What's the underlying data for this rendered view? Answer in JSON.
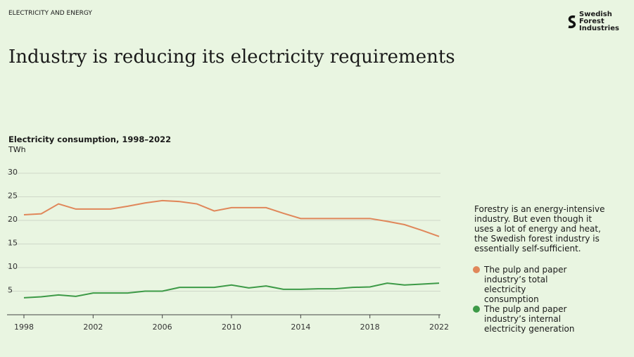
{
  "header": {
    "section": "ELECTRICITY AND ENERGY",
    "logo": "Swedish Forest Industries",
    "title": "Industry is reducing its electricity requirements"
  },
  "chart_data": {
    "type": "line",
    "title": "Electricity consumption, 1998–2022",
    "y_label": "TWh",
    "x": [
      1998,
      1999,
      2000,
      2001,
      2002,
      2003,
      2004,
      2005,
      2006,
      2007,
      2008,
      2009,
      2010,
      2011,
      2012,
      2013,
      2014,
      2015,
      2016,
      2017,
      2018,
      2019,
      2020,
      2021,
      2022
    ],
    "series": [
      {
        "name": "The pulp and paper industry’s total electricity consumption",
        "color": "#e0875a",
        "values": [
          21.2,
          21.4,
          23.5,
          22.4,
          22.4,
          22.4,
          23.0,
          23.7,
          24.2,
          24.0,
          23.5,
          22.0,
          22.7,
          22.7,
          22.7,
          21.5,
          20.4,
          20.4,
          20.4,
          20.4,
          20.4,
          19.8,
          19.1,
          17.9,
          16.6
        ]
      },
      {
        "name": "The pulp and paper industry’s internal electricity generation",
        "color": "#3d9a47",
        "values": [
          3.6,
          3.8,
          4.2,
          3.9,
          4.6,
          4.6,
          4.6,
          5.0,
          5.0,
          5.8,
          5.8,
          5.8,
          6.3,
          5.7,
          6.1,
          5.4,
          5.4,
          5.5,
          5.5,
          5.8,
          5.9,
          6.7,
          6.3,
          6.5,
          6.7
        ]
      }
    ],
    "xlim": [
      1998,
      2022
    ],
    "xticks": [
      1998,
      2002,
      2006,
      2010,
      2014,
      2018,
      2022
    ],
    "ylim": [
      0,
      30
    ],
    "yticks": [
      5,
      10,
      15,
      20,
      25,
      30
    ],
    "grid": true
  },
  "annotation": "Forestry is an energy-intensive industry. But even though it uses a lot of energy and heat, the Swedish forest industry is essentially self-sufficient."
}
